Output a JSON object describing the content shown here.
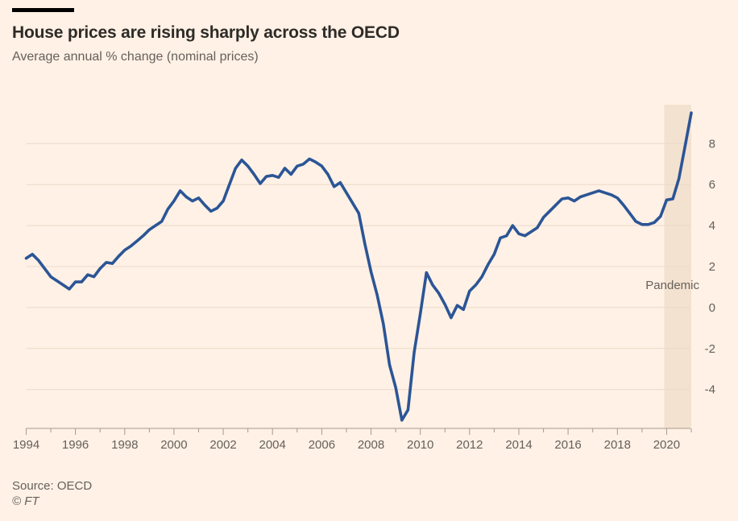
{
  "page": {
    "background": "#FFF1E5"
  },
  "header": {
    "title": "House prices are rising sharply across the OECD",
    "subtitle": "Average annual % change (nominal prices)"
  },
  "footer": {
    "source": "Source: OECD",
    "credit": "© FT"
  },
  "chart_data": {
    "type": "line",
    "title": "House prices are rising sharply across the OECD",
    "subtitle": "Average annual % change (nominal prices)",
    "xlabel": "",
    "ylabel": "Average annual % change (nominal prices)",
    "x_start": 1994.0,
    "x_step": 0.25,
    "x_end": 2021.0,
    "x_unit": "year (quarterly observations)",
    "values": [
      2.4,
      2.6,
      2.3,
      1.9,
      1.5,
      1.3,
      1.1,
      0.9,
      1.25,
      1.25,
      1.6,
      1.5,
      1.9,
      2.2,
      2.15,
      2.5,
      2.8,
      3.0,
      3.25,
      3.5,
      3.8,
      4.0,
      4.2,
      4.8,
      5.2,
      5.7,
      5.4,
      5.2,
      5.35,
      5.0,
      4.7,
      4.85,
      5.2,
      6.0,
      6.8,
      7.2,
      6.9,
      6.5,
      6.05,
      6.4,
      6.45,
      6.35,
      6.8,
      6.5,
      6.9,
      7.0,
      7.25,
      7.1,
      6.9,
      6.5,
      5.9,
      6.1,
      5.6,
      5.1,
      4.6,
      3.1,
      1.75,
      0.6,
      -0.8,
      -2.8,
      -3.9,
      -5.5,
      -5.0,
      -2.2,
      -0.3,
      1.7,
      1.1,
      0.7,
      0.15,
      -0.5,
      0.1,
      -0.1,
      0.8,
      1.1,
      1.5,
      2.1,
      2.6,
      3.4,
      3.5,
      4.0,
      3.6,
      3.5,
      3.7,
      3.9,
      4.4,
      4.7,
      5.0,
      5.3,
      5.35,
      5.2,
      5.4,
      5.5,
      5.6,
      5.7,
      5.6,
      5.5,
      5.35,
      5.0,
      4.6,
      4.2,
      4.05,
      4.05,
      4.15,
      4.45,
      5.25,
      5.3,
      6.3,
      7.9,
      9.5
    ],
    "x_tick_years": [
      1994,
      1996,
      1998,
      2000,
      2002,
      2004,
      2006,
      2008,
      2010,
      2012,
      2014,
      2016,
      2018,
      2020
    ],
    "y_ticks": [
      8,
      6,
      4,
      2,
      0,
      -2,
      -4
    ],
    "xlim": [
      1994,
      2021
    ],
    "ylim": [
      -5.9,
      9.9
    ],
    "grid": "horizontal gridlines only, y-axis labels on right",
    "legend": "none",
    "annotation": {
      "label": "Pandemic",
      "band_x": [
        2019.9,
        2021.0
      ]
    },
    "colors": {
      "line": "#2B5596",
      "band": "#F4E2D0",
      "grid": "#E9DACA",
      "axis": "#A8998A",
      "text": "#66605C",
      "title": "#2E2B28",
      "background": "#FFF1E5"
    },
    "source": "Source: OECD"
  }
}
